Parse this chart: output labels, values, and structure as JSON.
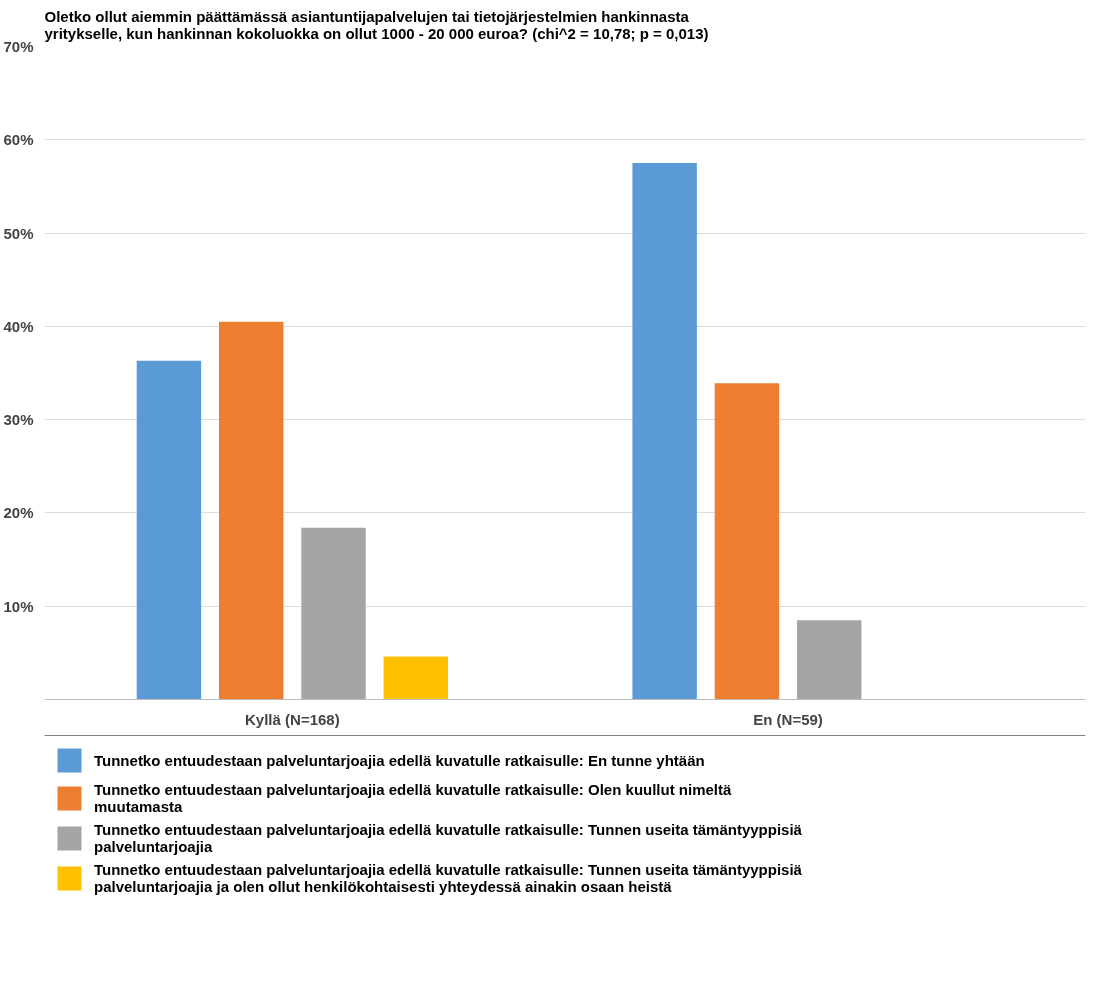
{
  "chart_data": {
    "type": "bar",
    "title": "Oletko ollut aiemmin päättämässä asiantuntijapalvelujen tai tietojärjestelmien hankinnasta yritykselle, kun hankinnan kokoluokka on ollut 1000 - 20 000 euroa? (chi^2 = 10,78; p = 0,013)",
    "categories": [
      "Kyllä (N=168)",
      "En (N=59)"
    ],
    "series": [
      {
        "name": "Tunnetko entuudestaan palveluntarjoajia edellä kuvatulle ratkaisulle: En tunne yhtään",
        "color": "#5b9bd5",
        "values": [
          36.3,
          57.5
        ]
      },
      {
        "name": "Tunnetko entuudestaan palveluntarjoajia edellä kuvatulle ratkaisulle: Olen kuullut nimeltä muutamasta",
        "color": "#ed7d31",
        "values": [
          40.5,
          33.9
        ]
      },
      {
        "name": "Tunnetko entuudestaan palveluntarjoajia edellä kuvatulle ratkaisulle: Tunnen useita tämäntyyppisiä palveluntarjoajia",
        "color": "#a5a5a5",
        "values": [
          18.4,
          8.5
        ]
      },
      {
        "name": "Tunnetko entuudestaan palveluntarjoajia edellä kuvatulle ratkaisulle: Tunnen useita tämäntyyppisiä palveluntarjoajia ja olen ollut henkilökohtaisesti yhteydessä ainakin osaan heistä",
        "color": "#ffc000",
        "values": [
          4.6,
          0
        ]
      }
    ],
    "ylim": [
      0,
      70
    ],
    "yticks": [
      {
        "value": 0,
        "label": null
      },
      {
        "value": 10,
        "label": "10%"
      },
      {
        "value": 20,
        "label": "20%"
      },
      {
        "value": 30,
        "label": "30%"
      },
      {
        "value": 40,
        "label": "40%"
      },
      {
        "value": 50,
        "label": "50%"
      },
      {
        "value": 60,
        "label": "60%"
      },
      {
        "value": 70,
        "label": "70%"
      }
    ],
    "grid": "y",
    "legend": "bottom"
  }
}
